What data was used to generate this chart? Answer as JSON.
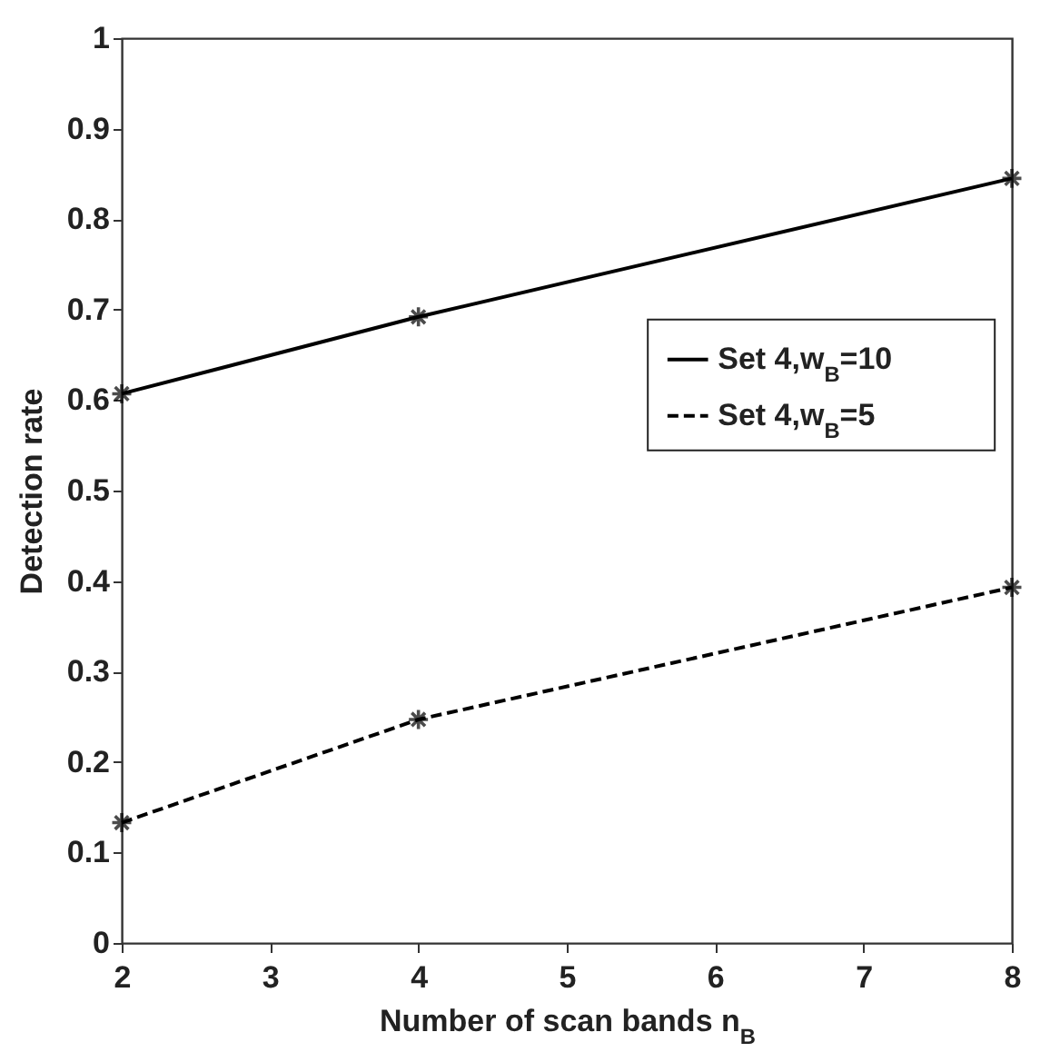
{
  "chart_data": {
    "type": "line",
    "xlabel": "Number of scan bands n$_{B}$",
    "ylabel": "Detection rate",
    "x": [
      2,
      4,
      8
    ],
    "series": [
      {
        "name": "Set 4,w$_{B}$=10",
        "color": "#000000",
        "line_style": "solid",
        "values": [
          0.607,
          0.692,
          0.845
        ]
      },
      {
        "name": "Set 4,w$_{B}$=5",
        "color": "#000000",
        "line_style": "dashed",
        "values": [
          0.133,
          0.247,
          0.393
        ]
      }
    ],
    "xlim": [
      2,
      8
    ],
    "xticks": [
      2,
      3,
      4,
      5,
      6,
      7,
      8
    ],
    "ylim": [
      0,
      1
    ],
    "yticks": [
      0,
      0.1,
      0.2,
      0.3,
      0.4,
      0.5,
      0.6,
      0.7,
      0.8,
      0.9,
      1
    ],
    "grid": false,
    "legend": "right",
    "marker": "cross"
  }
}
